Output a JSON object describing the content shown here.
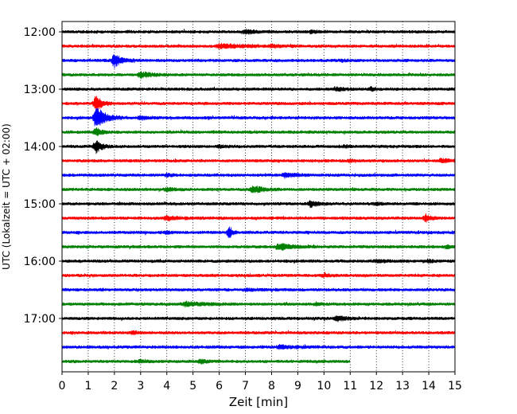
{
  "chart_data": {
    "type": "line",
    "title": "",
    "xlabel": "Zeit  [min]",
    "ylabel": "UTC (Lokalzeit = UTC + 02:00)",
    "xlim": [
      0,
      15
    ],
    "x_ticks": [
      "0",
      "1",
      "2",
      "3",
      "4",
      "5",
      "6",
      "7",
      "8",
      "9",
      "10",
      "11",
      "12",
      "13",
      "14",
      "15"
    ],
    "y_tick_labels": [
      "12:00",
      "13:00",
      "14:00",
      "15:00",
      "16:00",
      "17:00"
    ],
    "grid": "vertical-dotted",
    "trace_colors": [
      "#000000",
      "#ff0000",
      "#0000ff",
      "#008000"
    ],
    "series": [
      {
        "start": "12:00",
        "color": "#000000",
        "end_min": 15,
        "events": [
          {
            "t": 7.0,
            "amp": 2.2,
            "dur": 1.2
          },
          {
            "t": 9.5,
            "amp": 1.4,
            "dur": 0.8
          }
        ]
      },
      {
        "start": "12:15",
        "color": "#ff0000",
        "end_min": 15,
        "events": [
          {
            "t": 6.0,
            "amp": 2.5,
            "dur": 2.5
          },
          {
            "t": 8.0,
            "amp": 1.6,
            "dur": 1.0
          }
        ]
      },
      {
        "start": "12:30",
        "color": "#0000ff",
        "end_min": 15,
        "events": [
          {
            "t": 2.0,
            "amp": 8.0,
            "dur": 0.8
          },
          {
            "t": 10.7,
            "amp": 1.4,
            "dur": 0.4
          }
        ]
      },
      {
        "start": "12:45",
        "color": "#008000",
        "end_min": 15,
        "events": [
          {
            "t": 3.0,
            "amp": 3.5,
            "dur": 1.2
          }
        ]
      },
      {
        "start": "13:00",
        "color": "#000000",
        "end_min": 15,
        "events": [
          {
            "t": 10.5,
            "amp": 2.0,
            "dur": 0.8
          },
          {
            "t": 11.8,
            "amp": 2.0,
            "dur": 0.5
          }
        ]
      },
      {
        "start": "13:15",
        "color": "#ff0000",
        "end_min": 15,
        "events": [
          {
            "t": 1.3,
            "amp": 10.0,
            "dur": 0.6
          }
        ]
      },
      {
        "start": "13:30",
        "color": "#0000ff",
        "end_min": 15,
        "events": [
          {
            "t": 1.3,
            "amp": 14.0,
            "dur": 1.0
          },
          {
            "t": 3.0,
            "amp": 2.0,
            "dur": 0.8
          }
        ]
      },
      {
        "start": "13:45",
        "color": "#008000",
        "end_min": 15,
        "events": [
          {
            "t": 1.3,
            "amp": 5.0,
            "dur": 0.6
          }
        ]
      },
      {
        "start": "14:00",
        "color": "#000000",
        "end_min": 15,
        "events": [
          {
            "t": 1.3,
            "amp": 8.0,
            "dur": 0.6
          },
          {
            "t": 6.0,
            "amp": 1.5,
            "dur": 0.6
          },
          {
            "t": 10.8,
            "amp": 1.2,
            "dur": 0.5
          }
        ]
      },
      {
        "start": "14:15",
        "color": "#ff0000",
        "end_min": 15,
        "events": [
          {
            "t": 14.5,
            "amp": 2.5,
            "dur": 0.7
          },
          {
            "t": 11.0,
            "amp": 1.2,
            "dur": 0.5
          }
        ]
      },
      {
        "start": "14:30",
        "color": "#0000ff",
        "end_min": 15,
        "events": [
          {
            "t": 4.0,
            "amp": 1.6,
            "dur": 0.5
          },
          {
            "t": 8.5,
            "amp": 2.8,
            "dur": 1.0
          }
        ]
      },
      {
        "start": "14:45",
        "color": "#008000",
        "end_min": 15,
        "events": [
          {
            "t": 4.0,
            "amp": 2.0,
            "dur": 0.8
          },
          {
            "t": 7.3,
            "amp": 4.5,
            "dur": 1.0
          }
        ]
      },
      {
        "start": "15:00",
        "color": "#000000",
        "end_min": 15,
        "events": [
          {
            "t": 9.5,
            "amp": 4.0,
            "dur": 0.8
          },
          {
            "t": 12.0,
            "amp": 1.6,
            "dur": 0.5
          }
        ]
      },
      {
        "start": "15:15",
        "color": "#ff0000",
        "end_min": 15,
        "events": [
          {
            "t": 4.0,
            "amp": 2.2,
            "dur": 1.5
          },
          {
            "t": 13.9,
            "amp": 4.5,
            "dur": 0.5
          }
        ]
      },
      {
        "start": "15:30",
        "color": "#0000ff",
        "end_min": 15,
        "events": [
          {
            "t": 4.0,
            "amp": 1.5,
            "dur": 0.4
          },
          {
            "t": 6.4,
            "amp": 7.5,
            "dur": 0.3
          }
        ]
      },
      {
        "start": "15:45",
        "color": "#008000",
        "end_min": 15,
        "events": [
          {
            "t": 8.3,
            "amp": 4.0,
            "dur": 1.5
          },
          {
            "t": 14.7,
            "amp": 1.5,
            "dur": 0.5
          }
        ]
      },
      {
        "start": "16:00",
        "color": "#000000",
        "end_min": 15,
        "events": [
          {
            "t": 12.0,
            "amp": 1.8,
            "dur": 1.0
          },
          {
            "t": 14.0,
            "amp": 1.3,
            "dur": 0.5
          }
        ]
      },
      {
        "start": "16:15",
        "color": "#ff0000",
        "end_min": 15,
        "events": [
          {
            "t": 10.0,
            "amp": 1.2,
            "dur": 0.8
          }
        ]
      },
      {
        "start": "16:30",
        "color": "#0000ff",
        "end_min": 15,
        "events": [
          {
            "t": 7.0,
            "amp": 1.0,
            "dur": 1.0
          }
        ]
      },
      {
        "start": "16:45",
        "color": "#008000",
        "end_min": 15,
        "events": [
          {
            "t": 4.7,
            "amp": 2.6,
            "dur": 2.0
          },
          {
            "t": 9.7,
            "amp": 1.4,
            "dur": 0.5
          }
        ]
      },
      {
        "start": "17:00",
        "color": "#000000",
        "end_min": 15,
        "events": [
          {
            "t": 10.5,
            "amp": 3.2,
            "dur": 0.8
          }
        ]
      },
      {
        "start": "17:15",
        "color": "#ff0000",
        "end_min": 15,
        "events": [
          {
            "t": 2.7,
            "amp": 2.2,
            "dur": 0.4
          }
        ]
      },
      {
        "start": "17:30",
        "color": "#0000ff",
        "end_min": 15,
        "events": [
          {
            "t": 8.3,
            "amp": 1.8,
            "dur": 2.0
          }
        ]
      },
      {
        "start": "17:45",
        "color": "#008000",
        "end_min": 11,
        "events": [
          {
            "t": 3.0,
            "amp": 1.6,
            "dur": 0.6
          },
          {
            "t": 5.3,
            "amp": 2.5,
            "dur": 0.5
          }
        ]
      }
    ]
  }
}
